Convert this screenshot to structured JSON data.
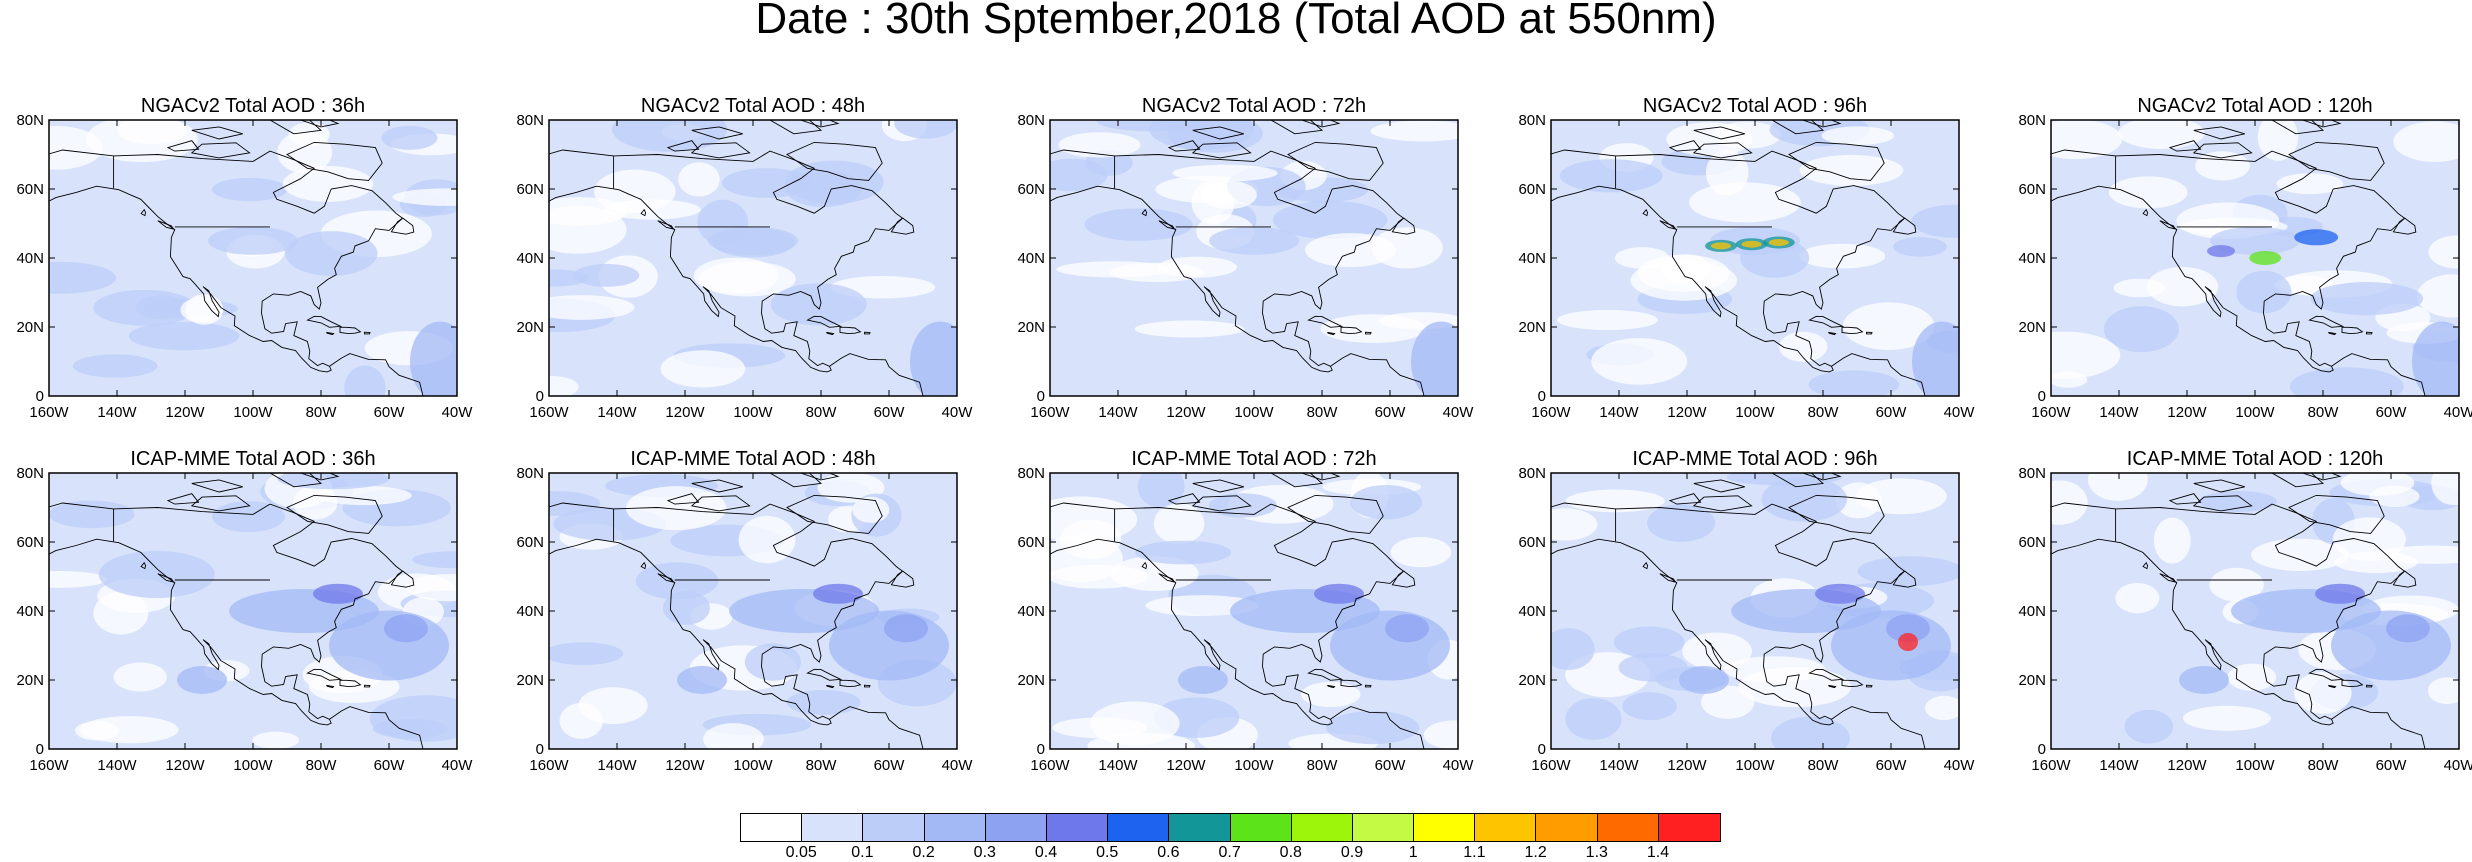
{
  "title": "Date : 30th Sptember,2018 (Total AOD at 550nm)",
  "panels": [
    {
      "title": "NGACv2 Total AOD : 36h",
      "model": "NGACv2",
      "lead": "36h"
    },
    {
      "title": "NGACv2 Total AOD : 48h",
      "model": "NGACv2",
      "lead": "48h"
    },
    {
      "title": "NGACv2 Total AOD : 72h",
      "model": "NGACv2",
      "lead": "72h"
    },
    {
      "title": "NGACv2 Total AOD : 96h",
      "model": "NGACv2",
      "lead": "96h"
    },
    {
      "title": "NGACv2 Total AOD : 120h",
      "model": "NGACv2",
      "lead": "120h"
    },
    {
      "title": "ICAP-MME Total AOD : 36h",
      "model": "ICAP-MME",
      "lead": "36h"
    },
    {
      "title": "ICAP-MME Total AOD : 48h",
      "model": "ICAP-MME",
      "lead": "48h"
    },
    {
      "title": "ICAP-MME Total AOD : 72h",
      "model": "ICAP-MME",
      "lead": "72h"
    },
    {
      "title": "ICAP-MME Total AOD : 96h",
      "model": "ICAP-MME",
      "lead": "96h"
    },
    {
      "title": "ICAP-MME Total AOD : 120h",
      "model": "ICAP-MME",
      "lead": "120h"
    }
  ],
  "lat_ticks": [
    "80N",
    "60N",
    "40N",
    "20N",
    "0"
  ],
  "lon_ticks": [
    "160W",
    "140W",
    "120W",
    "100W",
    "80W",
    "60W",
    "40W"
  ],
  "colorbar": {
    "labels": [
      "0.05",
      "0.1",
      "0.2",
      "0.3",
      "0.4",
      "0.5",
      "0.6",
      "0.7",
      "0.8",
      "0.9",
      "1",
      "1.1",
      "1.2",
      "1.3",
      "1.4"
    ],
    "colors": [
      "#ffffff",
      "#d8e3fb",
      "#bccdf8",
      "#a3b9f6",
      "#8da3f2",
      "#6f78ea",
      "#1e63f0",
      "#129697",
      "#5ce31a",
      "#9ef50c",
      "#c4fa44",
      "#ffff00",
      "#ffc400",
      "#ff9c00",
      "#ff6a00",
      "#ff2121"
    ]
  }
}
